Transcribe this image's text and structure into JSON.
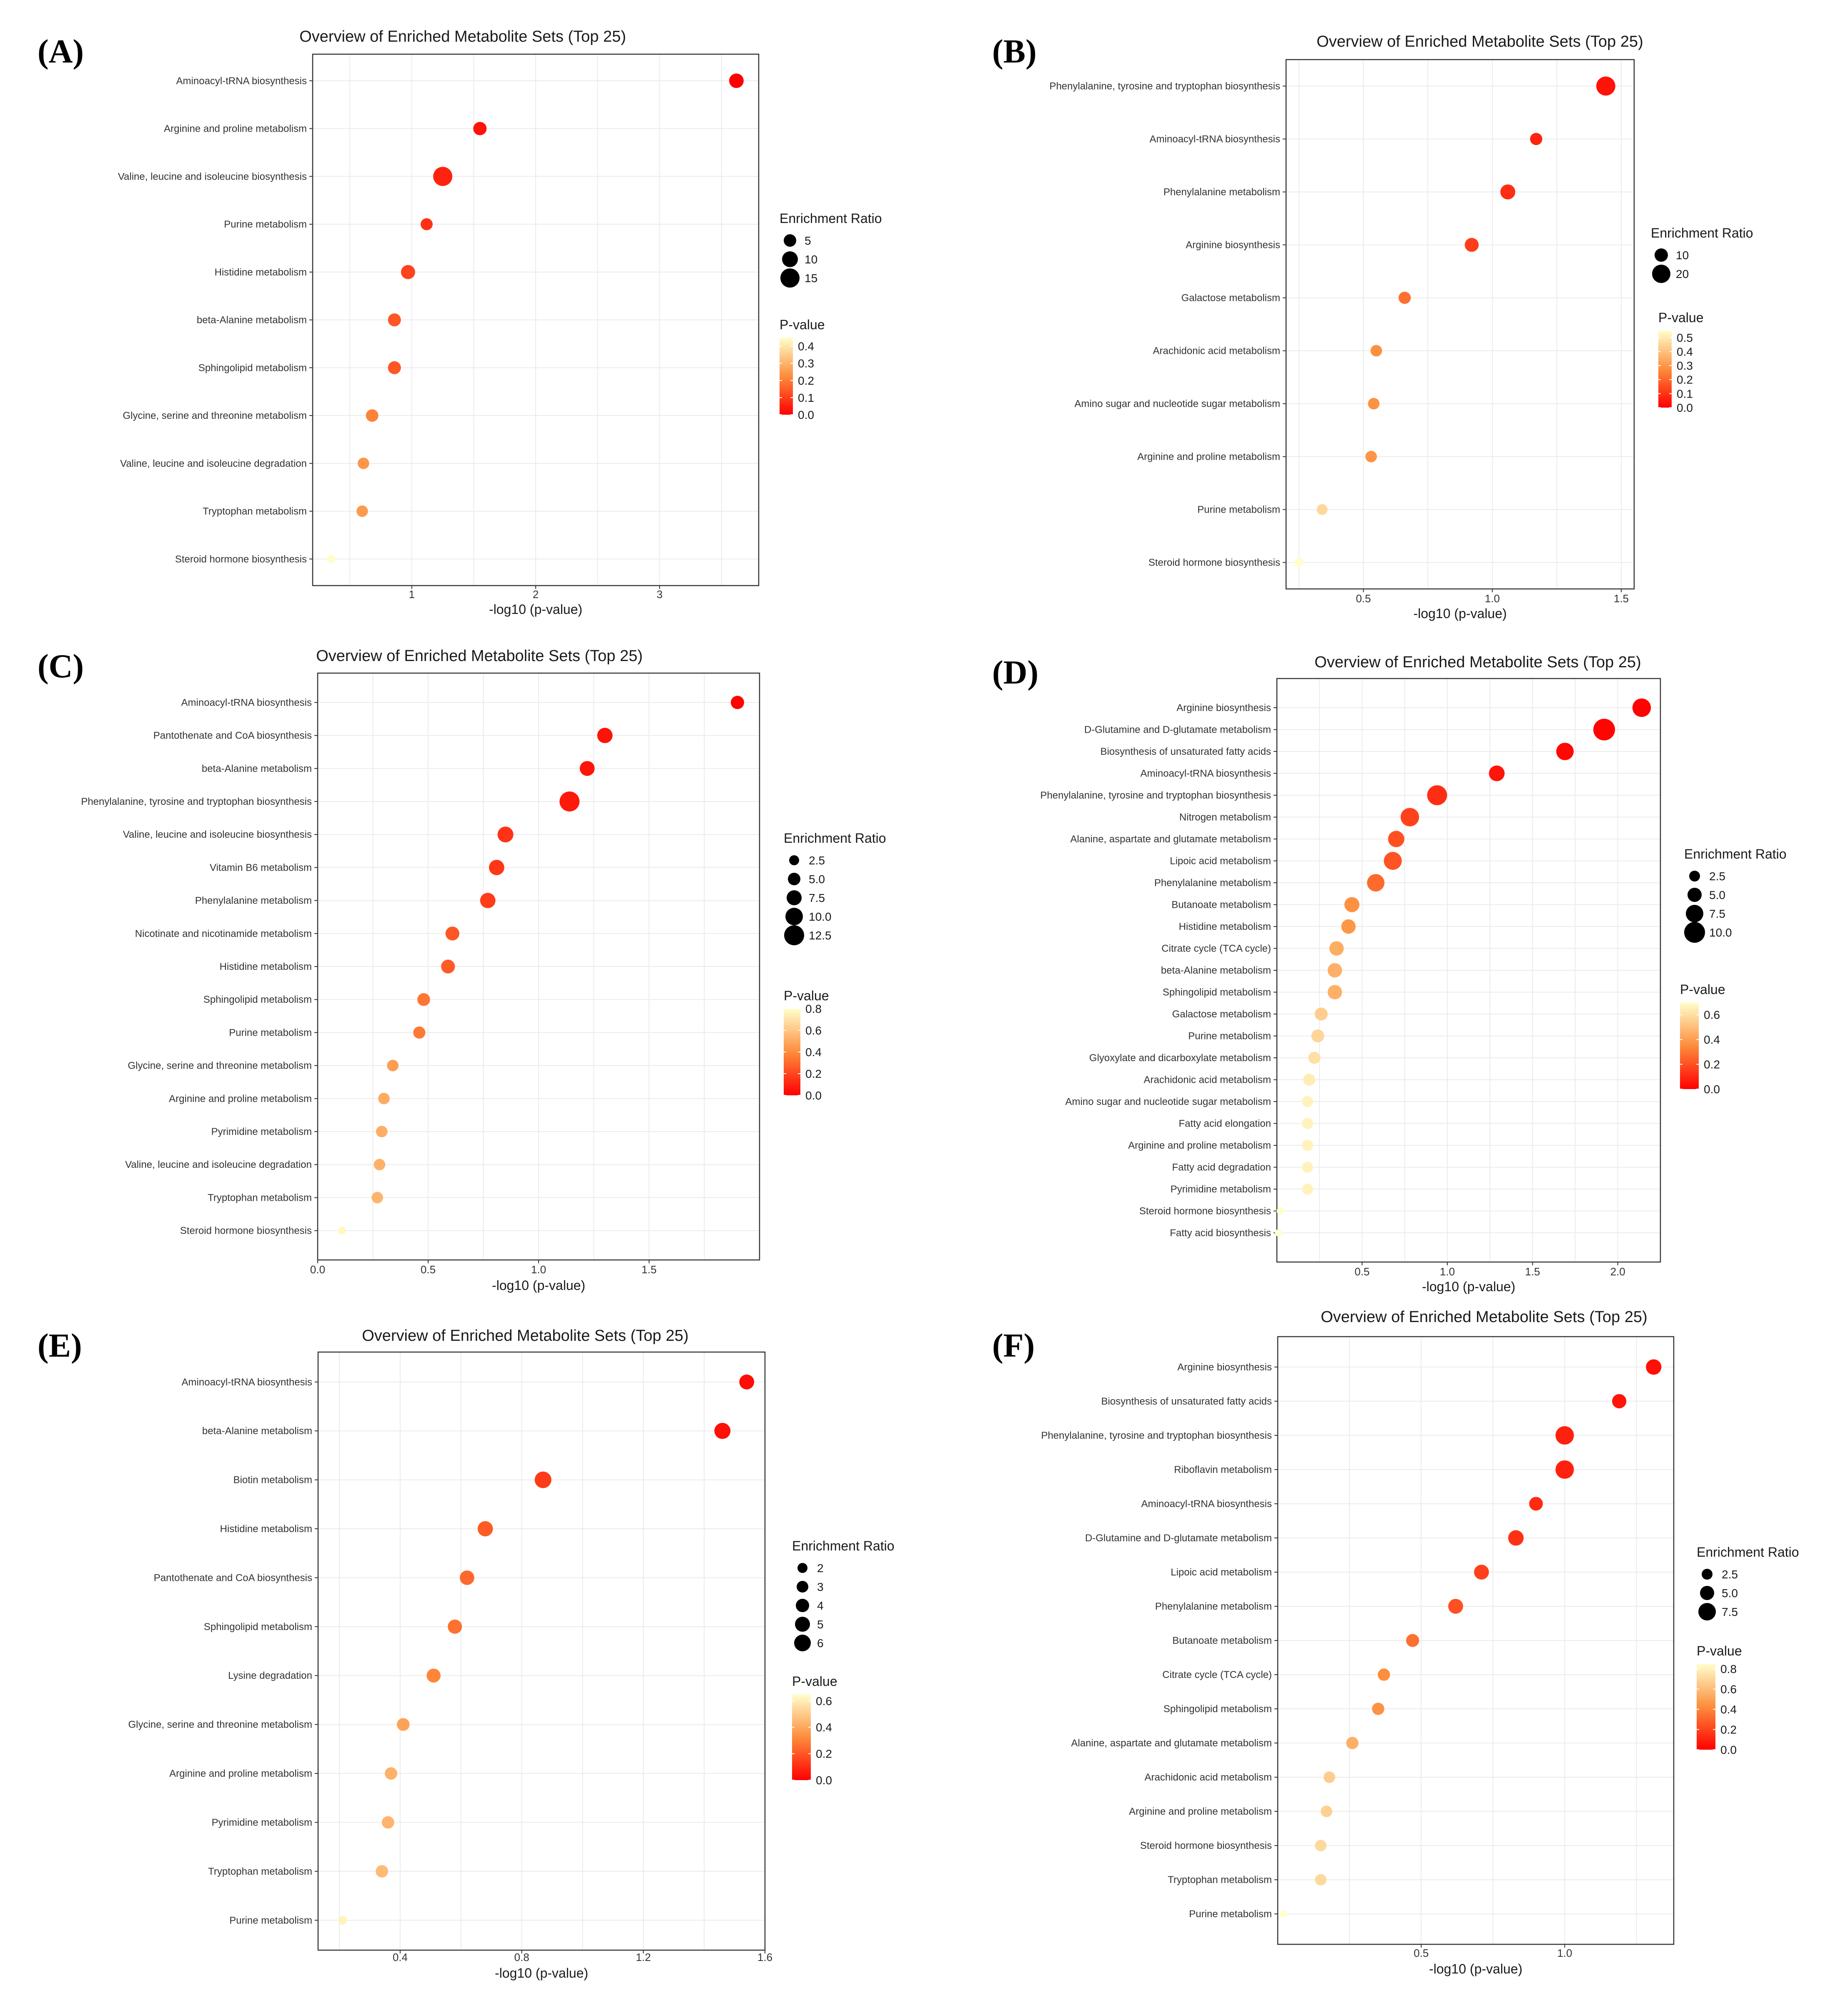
{
  "figure": {
    "panels": [
      "A",
      "B",
      "C",
      "D",
      "E",
      "F"
    ]
  },
  "legend_text": {
    "size_title": "Enrichment Ratio",
    "color_title": "P-value"
  },
  "colors": {
    "low_p": "#ff0000",
    "high_p": "#ffffcc",
    "grid": "#ebebeb",
    "panel_border": "#333333"
  },
  "chart_data": [
    {
      "panel": "(A)",
      "type": "scatter",
      "title": "Overview of Enriched Metabolite Sets (Top 25)",
      "xlabel": "-log10 (p-value)",
      "ylabel": "",
      "xlim": [
        0.2,
        3.8
      ],
      "xticks": [
        1,
        2,
        3
      ],
      "xtick_labels": [
        "1",
        "2",
        "3"
      ],
      "pathways": [
        "Aminoacyl-tRNA biosynthesis",
        "Arginine and proline metabolism",
        "Valine, leucine and isoleucine biosynthesis",
        "Purine metabolism",
        "Histidine metabolism",
        "beta-Alanine metabolism",
        "Sphingolipid metabolism",
        "Glycine, serine and threonine metabolism",
        "Valine, leucine and isoleucine degradation",
        "Tryptophan metabolism",
        "Steroid hormone biosynthesis"
      ],
      "x": [
        3.62,
        1.55,
        1.25,
        1.12,
        0.97,
        0.86,
        0.86,
        0.68,
        0.61,
        0.6,
        0.35
      ],
      "enrichment_ratio": [
        7.5,
        6.0,
        15.0,
        4.5,
        7.0,
        5.5,
        5.5,
        5.0,
        4.0,
        4.0,
        1.5
      ],
      "p_value": [
        0.0002,
        0.028,
        0.056,
        0.076,
        0.107,
        0.138,
        0.138,
        0.209,
        0.245,
        0.251,
        0.447
      ],
      "size_legend": {
        "values": [
          5,
          10,
          15
        ],
        "labels": [
          "5",
          "10",
          "15"
        ]
      },
      "color_legend": {
        "min": 0.0,
        "max": 0.45,
        "ticks": [
          0.4,
          0.3,
          0.2,
          0.1,
          0.0
        ],
        "labels": [
          "0.4",
          "0.3",
          "0.2",
          "0.1",
          "0.0"
        ]
      }
    },
    {
      "panel": "(B)",
      "type": "scatter",
      "title": "Overview of Enriched Metabolite Sets (Top 25)",
      "xlabel": "-log10 (p-value)",
      "ylabel": "",
      "xlim": [
        0.2,
        1.55
      ],
      "xticks": [
        0.5,
        1.0,
        1.5
      ],
      "xtick_labels": [
        "0.5",
        "1.0",
        "1.5"
      ],
      "pathways": [
        "Phenylalanine, tyrosine and tryptophan biosynthesis",
        "Aminoacyl-tRNA biosynthesis",
        "Phenylalanine metabolism",
        "Arginine biosynthesis",
        "Galactose metabolism",
        "Arachidonic acid metabolism",
        "Amino sugar and nucleotide sugar metabolism",
        "Arginine and proline metabolism",
        "Purine metabolism",
        "Steroid hormone biosynthesis"
      ],
      "x": [
        1.44,
        1.17,
        1.06,
        0.92,
        0.66,
        0.55,
        0.54,
        0.53,
        0.34,
        0.25
      ],
      "enrichment_ratio": [
        22,
        7,
        12,
        10,
        7,
        6,
        6,
        6,
        5,
        3
      ],
      "p_value": [
        0.036,
        0.068,
        0.087,
        0.12,
        0.219,
        0.282,
        0.288,
        0.295,
        0.457,
        0.562
      ],
      "size_legend": {
        "values": [
          10,
          20
        ],
        "labels": [
          "10",
          "20"
        ]
      },
      "color_legend": {
        "min": 0.0,
        "max": 0.55,
        "ticks": [
          0.5,
          0.4,
          0.3,
          0.2,
          0.1,
          0.0
        ],
        "labels": [
          "0.5",
          "0.4",
          "0.3",
          "0.2",
          "0.1",
          "0.0"
        ]
      }
    },
    {
      "panel": "(C)",
      "type": "scatter",
      "title": "Overview of Enriched Metabolite Sets (Top 25)",
      "xlabel": "-log10 (p-value)",
      "ylabel": "",
      "xlim": [
        0.0,
        2.0
      ],
      "xticks": [
        0.0,
        0.5,
        1.0,
        1.5
      ],
      "xtick_labels": [
        "0.0",
        "0.5",
        "1.0",
        "1.5"
      ],
      "pathways": [
        "Aminoacyl-tRNA biosynthesis",
        "Pantothenate and CoA biosynthesis",
        "beta-Alanine metabolism",
        "Phenylalanine, tyrosine and tryptophan biosynthesis",
        "Valine, leucine and isoleucine biosynthesis",
        "Vitamin B6 metabolism",
        "Phenylalanine metabolism",
        "Nicotinate and nicotinamide metabolism",
        "Histidine metabolism",
        "Sphingolipid metabolism",
        "Purine metabolism",
        "Glycine, serine and threonine metabolism",
        "Arginine and proline metabolism",
        "Pyrimidine metabolism",
        "Valine, leucine and isoleucine degradation",
        "Tryptophan metabolism",
        "Steroid hormone biosynthesis"
      ],
      "x": [
        1.9,
        1.3,
        1.22,
        1.14,
        0.85,
        0.81,
        0.77,
        0.61,
        0.59,
        0.48,
        0.46,
        0.34,
        0.3,
        0.29,
        0.28,
        0.27,
        0.11
      ],
      "enrichment_ratio": [
        4.5,
        6.5,
        6.0,
        12.5,
        7.0,
        6.5,
        6.5,
        5.0,
        5.0,
        4.0,
        3.5,
        3.0,
        3.0,
        3.0,
        3.0,
        3.0,
        1.0
      ],
      "p_value": [
        0.0126,
        0.05,
        0.06,
        0.072,
        0.141,
        0.155,
        0.17,
        0.245,
        0.257,
        0.331,
        0.347,
        0.457,
        0.501,
        0.513,
        0.525,
        0.537,
        0.776
      ],
      "size_legend": {
        "values": [
          2.5,
          5.0,
          7.5,
          10.0,
          12.5
        ],
        "labels": [
          "2.5",
          "5.0",
          "7.5",
          "10.0",
          "12.5"
        ]
      },
      "color_legend": {
        "min": 0.0,
        "max": 0.8,
        "ticks": [
          0.8,
          0.6,
          0.4,
          0.2,
          0.0
        ],
        "labels": [
          "0.8",
          "0.6",
          "0.4",
          "0.2",
          "0.0"
        ]
      }
    },
    {
      "panel": "(D)",
      "type": "scatter",
      "title": "Overview of Enriched Metabolite Sets (Top 25)",
      "xlabel": "-log10 (p-value)",
      "ylabel": "",
      "xlim": [
        0.0,
        2.25
      ],
      "xticks": [
        0.5,
        1.0,
        1.5,
        2.0
      ],
      "xtick_labels": [
        "0.5",
        "1.0",
        "1.5",
        "2.0"
      ],
      "pathways": [
        "Arginine biosynthesis",
        "D-Glutamine and D-glutamate metabolism",
        "Biosynthesis of unsaturated fatty acids",
        "Aminoacyl-tRNA biosynthesis",
        "Phenylalanine, tyrosine and tryptophan biosynthesis",
        "Nitrogen metabolism",
        "Alanine, aspartate and glutamate metabolism",
        "Lipoic acid metabolism",
        "Phenylalanine metabolism",
        "Butanoate metabolism",
        "Histidine metabolism",
        "Citrate cycle (TCA cycle)",
        "beta-Alanine metabolism",
        "Sphingolipid metabolism",
        "Galactose metabolism",
        "Purine metabolism",
        "Glyoxylate and dicarboxylate metabolism",
        "Arachidonic acid metabolism",
        "Amino sugar and nucleotide sugar metabolism",
        "Fatty acid elongation",
        "Arginine and proline metabolism",
        "Fatty acid degradation",
        "Pyrimidine metabolism",
        "Steroid hormone biosynthesis",
        "Fatty acid biosynthesis"
      ],
      "x": [
        2.14,
        1.92,
        1.69,
        1.29,
        0.94,
        0.78,
        0.7,
        0.68,
        0.58,
        0.44,
        0.42,
        0.35,
        0.34,
        0.34,
        0.26,
        0.24,
        0.22,
        0.19,
        0.18,
        0.18,
        0.18,
        0.18,
        0.18,
        0.02,
        0.01
      ],
      "enrichment_ratio": [
        7.5,
        11.0,
        6.5,
        5.0,
        9.0,
        7.5,
        5.5,
        7.0,
        6.5,
        4.5,
        4.0,
        4.0,
        4.0,
        4.0,
        3.0,
        3.0,
        2.5,
        2.5,
        2.0,
        2.0,
        2.0,
        2.0,
        2.0,
        0.5,
        0.5
      ],
      "p_value": [
        0.0072,
        0.012,
        0.02,
        0.051,
        0.115,
        0.166,
        0.2,
        0.209,
        0.263,
        0.363,
        0.38,
        0.447,
        0.457,
        0.457,
        0.55,
        0.575,
        0.603,
        0.646,
        0.661,
        0.661,
        0.661,
        0.661,
        0.661,
        0.955,
        0.977
      ],
      "size_legend": {
        "values": [
          2.5,
          5.0,
          7.5,
          10.0
        ],
        "labels": [
          "2.5",
          "5.0",
          "7.5",
          "10.0"
        ]
      },
      "color_legend": {
        "min": 0.0,
        "max": 0.7,
        "ticks": [
          0.6,
          0.4,
          0.2,
          0.0
        ],
        "labels": [
          "0.6",
          "0.4",
          "0.2",
          "0.0"
        ]
      }
    },
    {
      "panel": "(E)",
      "type": "scatter",
      "title": "Overview of Enriched Metabolite Sets (Top 25)",
      "xlabel": "-log10 (p-value)",
      "ylabel": "",
      "xlim": [
        0.13,
        1.6
      ],
      "xticks": [
        0.4,
        0.8,
        1.2,
        1.6
      ],
      "xtick_labels": [
        "0.4",
        "0.8",
        "1.2",
        "1.6"
      ],
      "pathways": [
        "Aminoacyl-tRNA biosynthesis",
        "beta-Alanine metabolism",
        "Biotin metabolism",
        "Histidine metabolism",
        "Pantothenate and CoA biosynthesis",
        "Sphingolipid metabolism",
        "Lysine degradation",
        "Glycine, serine and threonine metabolism",
        "Arginine and proline metabolism",
        "Pyrimidine metabolism",
        "Tryptophan metabolism",
        "Purine metabolism"
      ],
      "x": [
        1.54,
        1.46,
        0.87,
        0.68,
        0.62,
        0.58,
        0.51,
        0.41,
        0.37,
        0.36,
        0.34,
        0.21
      ],
      "enrichment_ratio": [
        4.5,
        5.5,
        6.0,
        4.8,
        4.2,
        4.0,
        3.8,
        3.0,
        2.8,
        2.8,
        2.8,
        1.0
      ],
      "p_value": [
        0.029,
        0.035,
        0.135,
        0.209,
        0.24,
        0.263,
        0.309,
        0.389,
        0.427,
        0.437,
        0.457,
        0.617
      ],
      "size_legend": {
        "values": [
          2,
          3,
          4,
          5,
          6
        ],
        "labels": [
          "2",
          "3",
          "4",
          "5",
          "6"
        ]
      },
      "color_legend": {
        "min": 0.0,
        "max": 0.65,
        "ticks": [
          0.6,
          0.4,
          0.2,
          0.0
        ],
        "labels": [
          "0.6",
          "0.4",
          "0.2",
          "0.0"
        ]
      }
    },
    {
      "panel": "(F)",
      "type": "scatter",
      "title": "Overview of Enriched Metabolite Sets (Top 25)",
      "xlabel": "-log10 (p-value)",
      "ylabel": "",
      "xlim": [
        0.0,
        1.38
      ],
      "xticks": [
        0.5,
        1.0
      ],
      "xtick_labels": [
        "0.5",
        "1.0"
      ],
      "pathways": [
        "Arginine biosynthesis",
        "Biosynthesis of unsaturated fatty acids",
        "Phenylalanine, tyrosine and tryptophan biosynthesis",
        "Riboflavin metabolism",
        "Aminoacyl-tRNA biosynthesis",
        "D-Glutamine and D-glutamate metabolism",
        "Lipoic acid metabolism",
        "Phenylalanine metabolism",
        "Butanoate metabolism",
        "Citrate cycle (TCA cycle)",
        "Sphingolipid metabolism",
        "Alanine, aspartate and glutamate metabolism",
        "Arachidonic acid metabolism",
        "Arginine and proline metabolism",
        "Steroid hormone biosynthesis",
        "Tryptophan metabolism",
        "Purine metabolism"
      ],
      "x": [
        1.31,
        1.19,
        1.0,
        1.0,
        0.9,
        0.83,
        0.71,
        0.62,
        0.47,
        0.37,
        0.35,
        0.26,
        0.18,
        0.17,
        0.15,
        0.15,
        0.02
      ],
      "enrichment_ratio": [
        5.5,
        4.5,
        8.5,
        8.5,
        4.0,
        5.5,
        5.0,
        5.0,
        3.5,
        3.0,
        3.0,
        3.0,
        2.5,
        2.5,
        2.5,
        2.5,
        0.5
      ],
      "p_value": [
        0.049,
        0.065,
        0.1,
        0.1,
        0.126,
        0.148,
        0.195,
        0.24,
        0.339,
        0.427,
        0.447,
        0.55,
        0.661,
        0.676,
        0.708,
        0.708,
        0.955
      ],
      "size_legend": {
        "values": [
          2.5,
          5.0,
          7.5
        ],
        "labels": [
          "2.5",
          "5.0",
          "7.5"
        ]
      },
      "color_legend": {
        "min": 0.0,
        "max": 0.85,
        "ticks": [
          0.8,
          0.6,
          0.4,
          0.2,
          0.0
        ],
        "labels": [
          "0.8",
          "0.6",
          "0.4",
          "0.2",
          "0.0"
        ]
      }
    }
  ]
}
